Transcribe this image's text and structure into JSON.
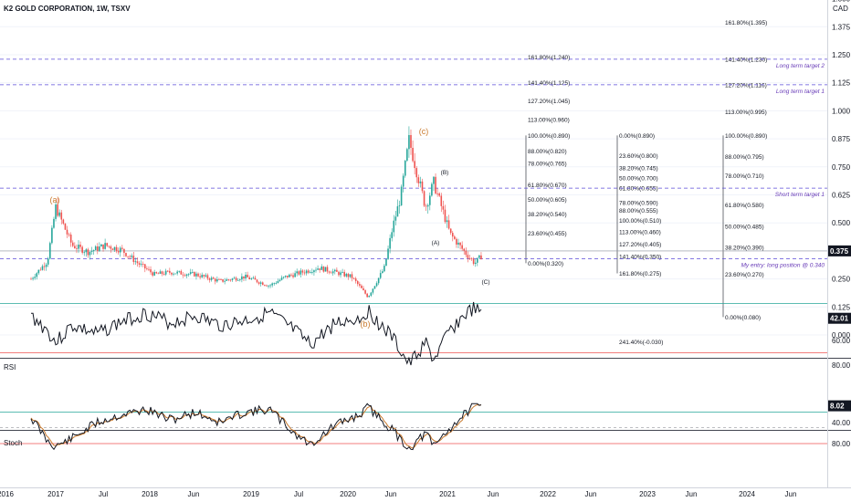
{
  "header": {
    "title": "K2 GOLD CORPORATION, 1W, TSXV",
    "currency": "CAD"
  },
  "chart_data": [
    {
      "type": "candlestick",
      "pane": "price",
      "y_ticks": [
        "1.500",
        "1.375",
        "1.250",
        "1.125",
        "1.000",
        "0.875",
        "0.750",
        "0.625",
        "0.500",
        "0.375",
        "0.250",
        "0.125",
        "0.000"
      ],
      "ylim": [
        -0.05,
        1.55
      ],
      "current_price": "0.375",
      "x_ticks": [
        "2016",
        "2017",
        "Jul",
        "2018",
        "Jun",
        "2019",
        "Jul",
        "2020",
        "Jun",
        "2021",
        "Jun",
        "2022",
        "Jun",
        "2023",
        "Jun",
        "2024",
        "Jun"
      ],
      "series": [
        {
          "name": "price",
          "points": [
            {
              "x": "2016-10",
              "y": 0.25
            },
            {
              "x": "2016-12",
              "y": 0.33
            },
            {
              "x": "2017-01",
              "y": 0.57
            },
            {
              "x": "2017-03",
              "y": 0.4
            },
            {
              "x": "2017-05",
              "y": 0.37
            },
            {
              "x": "2017-07",
              "y": 0.4
            },
            {
              "x": "2017-09",
              "y": 0.38
            },
            {
              "x": "2017-11",
              "y": 0.32
            },
            {
              "x": "2018-01",
              "y": 0.27
            },
            {
              "x": "2018-03",
              "y": 0.28
            },
            {
              "x": "2018-06",
              "y": 0.27
            },
            {
              "x": "2018-09",
              "y": 0.24
            },
            {
              "x": "2018-12",
              "y": 0.26
            },
            {
              "x": "2019-03",
              "y": 0.22
            },
            {
              "x": "2019-05",
              "y": 0.26
            },
            {
              "x": "2019-07",
              "y": 0.28
            },
            {
              "x": "2019-09",
              "y": 0.3
            },
            {
              "x": "2019-11",
              "y": 0.28
            },
            {
              "x": "2020-01",
              "y": 0.26
            },
            {
              "x": "2020-03",
              "y": 0.17
            },
            {
              "x": "2020-05",
              "y": 0.3
            },
            {
              "x": "2020-06",
              "y": 0.48
            },
            {
              "x": "2020-07",
              "y": 0.62
            },
            {
              "x": "2020-08",
              "y": 0.87
            },
            {
              "x": "2020-10",
              "y": 0.57
            },
            {
              "x": "2020-11",
              "y": 0.68
            },
            {
              "x": "2021-01",
              "y": 0.45
            },
            {
              "x": "2021-03",
              "y": 0.36
            },
            {
              "x": "2021-04",
              "y": 0.32
            },
            {
              "x": "2021-05",
              "y": 0.36
            }
          ]
        }
      ],
      "wave_labels": [
        "(a)",
        "(b)",
        "(c)",
        "(A)",
        "(B)",
        "(C)"
      ],
      "horizontal_levels": [
        {
          "value": 1.23,
          "label": "Long term target 2"
        },
        {
          "value": 1.116,
          "label": "Long term target 1"
        },
        {
          "value": 0.655,
          "label": "Short term target 1"
        },
        {
          "value": 0.34,
          "label": "My entry: long position @ 0.340"
        }
      ],
      "fib_set_1": [
        "161.80%(1.240)",
        "141.40%(1.125)",
        "127.20%(1.045)",
        "113.00%(0.960)",
        "100.00%(0.890)",
        "88.00%(0.820)",
        "78.00%(0.765)",
        "61.80%(0.670)",
        "50.00%(0.605)",
        "38.20%(0.540)",
        "23.60%(0.455)",
        "0.00%(0.320)"
      ],
      "fib_set_2": [
        "0.00%(0.890)",
        "23.60%(0.800)",
        "38.20%(0.745)",
        "50.00%(0.700)",
        "61.80%(0.655)",
        "78.00%(0.590)",
        "88.00%(0.555)",
        "100.00%(0.510)",
        "113.00%(0.460)",
        "127.20%(0.405)",
        "141.40%(0.350)",
        "161.80%(0.275)",
        "241.40%(-0.030)"
      ],
      "fib_set_3": [
        "161.80%(1.395)",
        "141.40%(1.230)",
        "127.20%(1.116)",
        "113.00%(0.995)",
        "100.00%(0.890)",
        "88.00%(0.795)",
        "78.00%(0.710)",
        "61.80%(0.580)",
        "50.00%(0.485)",
        "38.20%(0.390)",
        "23.60%(0.270)",
        "0.00%(0.080)"
      ]
    },
    {
      "type": "line",
      "pane": "indicator",
      "label": "RSI",
      "value": "42.01",
      "y_ticks": [
        "80.00",
        "60.00",
        "40.00"
      ],
      "ylim": [
        20,
        85
      ],
      "series": [
        {
          "name": "RSI",
          "points": [
            {
              "x": "2016-10",
              "y": 40
            },
            {
              "x": "2016-12",
              "y": 52
            },
            {
              "x": "2017-01",
              "y": 62
            },
            {
              "x": "2017-03",
              "y": 48
            },
            {
              "x": "2017-06",
              "y": 55
            },
            {
              "x": "2017-09",
              "y": 45
            },
            {
              "x": "2017-12",
              "y": 38
            },
            {
              "x": "2018-03",
              "y": 46
            },
            {
              "x": "2018-06",
              "y": 40
            },
            {
              "x": "2018-09",
              "y": 48
            },
            {
              "x": "2018-12",
              "y": 44
            },
            {
              "x": "2019-03",
              "y": 38
            },
            {
              "x": "2019-06",
              "y": 52
            },
            {
              "x": "2019-08",
              "y": 64
            },
            {
              "x": "2019-11",
              "y": 46
            },
            {
              "x": "2020-02",
              "y": 42
            },
            {
              "x": "2020-03",
              "y": 36
            },
            {
              "x": "2020-06",
              "y": 58
            },
            {
              "x": "2020-08",
              "y": 80
            },
            {
              "x": "2020-10",
              "y": 62
            },
            {
              "x": "2020-11",
              "y": 76
            },
            {
              "x": "2021-01",
              "y": 52
            },
            {
              "x": "2021-03",
              "y": 38
            },
            {
              "x": "2021-04",
              "y": 34
            },
            {
              "x": "2021-05",
              "y": 42
            }
          ]
        }
      ]
    },
    {
      "type": "line",
      "pane": "indicator",
      "label": "Stoch",
      "value": "8.02",
      "y_ticks": [
        "80.00",
        "40.00"
      ],
      "ylim": [
        0,
        100
      ],
      "series": [
        {
          "name": "Stoch",
          "points": [
            {
              "x": "2016-10",
              "y": 30
            },
            {
              "x": "2016-12",
              "y": 75
            },
            {
              "x": "2017-01",
              "y": 85
            },
            {
              "x": "2017-03",
              "y": 70
            },
            {
              "x": "2017-06",
              "y": 40
            },
            {
              "x": "2017-09",
              "y": 25
            },
            {
              "x": "2017-12",
              "y": 15
            },
            {
              "x": "2018-03",
              "y": 35
            },
            {
              "x": "2018-06",
              "y": 20
            },
            {
              "x": "2018-09",
              "y": 40
            },
            {
              "x": "2018-12",
              "y": 20
            },
            {
              "x": "2019-03",
              "y": 15
            },
            {
              "x": "2019-06",
              "y": 60
            },
            {
              "x": "2019-08",
              "y": 82
            },
            {
              "x": "2019-11",
              "y": 45
            },
            {
              "x": "2020-02",
              "y": 25
            },
            {
              "x": "2020-03",
              "y": 10
            },
            {
              "x": "2020-06",
              "y": 55
            },
            {
              "x": "2020-08",
              "y": 90
            },
            {
              "x": "2020-10",
              "y": 60
            },
            {
              "x": "2020-11",
              "y": 85
            },
            {
              "x": "2021-01",
              "y": 50
            },
            {
              "x": "2021-03",
              "y": 20
            },
            {
              "x": "2021-04",
              "y": 8
            },
            {
              "x": "2021-05",
              "y": 8
            }
          ]
        }
      ]
    }
  ]
}
